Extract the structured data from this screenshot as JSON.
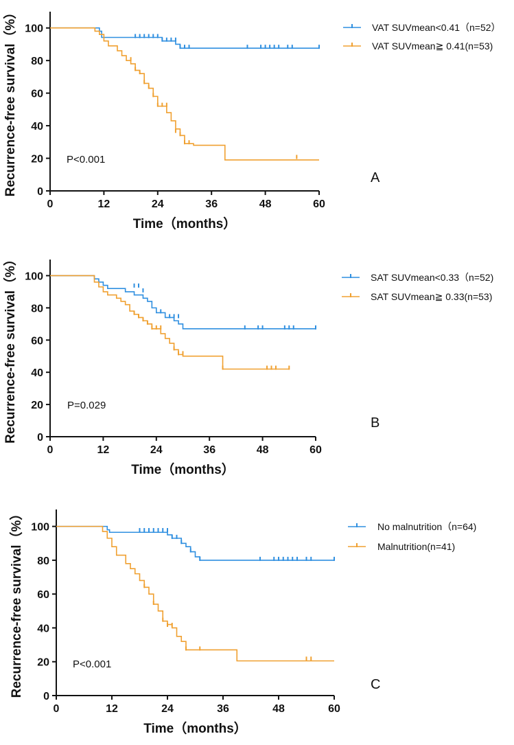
{
  "figure": {
    "colors": {
      "blue": "#2f8fe0",
      "orange": "#f0a030",
      "axis": "#111111"
    }
  },
  "chart_data": [
    {
      "type": "line",
      "subtype": "kaplan-meier",
      "panel_label": "A",
      "p_value_text": "P<0.001",
      "xlabel": "Time（months）",
      "ylabel": "Recurrence-free survival（%）",
      "xlim": [
        0,
        60
      ],
      "ylim": [
        0,
        110
      ],
      "x_ticks": [
        0,
        12,
        24,
        36,
        48,
        60
      ],
      "y_ticks": [
        0,
        20,
        40,
        60,
        80,
        100
      ],
      "legend_position": "top-right",
      "series": [
        {
          "name": "VAT SUVmean<0.41（n=52）",
          "color": "#2f8fe0",
          "steps": [
            [
              0,
              100
            ],
            [
              11,
              98
            ],
            [
              11.5,
              94.2
            ],
            [
              23,
              94.2
            ],
            [
              25,
              92
            ],
            [
              28,
              90
            ],
            [
              29,
              87.6
            ],
            [
              60,
              87.6
            ]
          ],
          "censored": [
            [
              19,
              94.2
            ],
            [
              20,
              94.2
            ],
            [
              21,
              94.2
            ],
            [
              22,
              94.2
            ],
            [
              23,
              94.2
            ],
            [
              24,
              94.2
            ],
            [
              25,
              92
            ],
            [
              26,
              92
            ],
            [
              27,
              92
            ],
            [
              28,
              92
            ],
            [
              29,
              87.6
            ],
            [
              30,
              87.6
            ],
            [
              31,
              87.6
            ],
            [
              44,
              87.6
            ],
            [
              47,
              87.6
            ],
            [
              48,
              87.6
            ],
            [
              49,
              87.6
            ],
            [
              50,
              87.6
            ],
            [
              51,
              87.6
            ],
            [
              53,
              87.6
            ],
            [
              54,
              87.6
            ],
            [
              60,
              87.6
            ]
          ]
        },
        {
          "name": "VAT SUVmean≧ 0.41(n=53)",
          "color": "#f0a030",
          "steps": [
            [
              0,
              100
            ],
            [
              10,
              98
            ],
            [
              11,
              96
            ],
            [
              12,
              92
            ],
            [
              13,
              89
            ],
            [
              15,
              86
            ],
            [
              16,
              83
            ],
            [
              17,
              80
            ],
            [
              18,
              78
            ],
            [
              19,
              74
            ],
            [
              20,
              72
            ],
            [
              21,
              66
            ],
            [
              22,
              63
            ],
            [
              23,
              58
            ],
            [
              24,
              52
            ],
            [
              26,
              48
            ],
            [
              27,
              43
            ],
            [
              28,
              38
            ],
            [
              29,
              34
            ],
            [
              30,
              29
            ],
            [
              32,
              28
            ],
            [
              39,
              19
            ],
            [
              60,
              19
            ]
          ],
          "censored": [
            [
              18,
              80
            ],
            [
              19,
              74
            ],
            [
              20,
              72
            ],
            [
              21,
              66
            ],
            [
              22,
              63
            ],
            [
              23,
              58
            ],
            [
              24,
              52
            ],
            [
              25,
              52
            ],
            [
              26,
              52
            ],
            [
              28,
              36
            ],
            [
              29,
              34
            ],
            [
              30,
              29
            ],
            [
              31,
              29
            ],
            [
              55,
              20
            ]
          ]
        }
      ]
    },
    {
      "type": "line",
      "subtype": "kaplan-meier",
      "panel_label": "B",
      "p_value_text": "P=0.029",
      "xlabel": "Time（months）",
      "ylabel": "Recurrence-free survival（%）",
      "xlim": [
        0,
        60
      ],
      "ylim": [
        0,
        110
      ],
      "x_ticks": [
        0,
        12,
        24,
        36,
        48,
        60
      ],
      "y_ticks": [
        0,
        20,
        40,
        60,
        80,
        100
      ],
      "legend_position": "top-right",
      "series": [
        {
          "name": "SAT SUVmean<0.33（n=52)",
          "color": "#2f8fe0",
          "steps": [
            [
              0,
              100
            ],
            [
              10,
              98
            ],
            [
              11,
              96
            ],
            [
              12,
              94
            ],
            [
              13,
              92
            ],
            [
              17,
              90
            ],
            [
              19,
              88
            ],
            [
              21,
              86
            ],
            [
              22,
              84
            ],
            [
              23,
              80
            ],
            [
              24,
              77
            ],
            [
              26,
              74
            ],
            [
              28,
              72
            ],
            [
              29,
              70
            ],
            [
              30,
              67
            ],
            [
              60,
              67
            ]
          ],
          "censored": [
            [
              19,
              93
            ],
            [
              20,
              93
            ],
            [
              21,
              90
            ],
            [
              25,
              77
            ],
            [
              27,
              74
            ],
            [
              28,
              74
            ],
            [
              29,
              74
            ],
            [
              44,
              67
            ],
            [
              47,
              67
            ],
            [
              48,
              67
            ],
            [
              53,
              67
            ],
            [
              54,
              67
            ],
            [
              55,
              67
            ],
            [
              60,
              67
            ]
          ]
        },
        {
          "name": "SAT SUVmean≧ 0.33(n=53)",
          "color": "#f0a030",
          "steps": [
            [
              0,
              100
            ],
            [
              10,
              96
            ],
            [
              11,
              93
            ],
            [
              12,
              90
            ],
            [
              13,
              88
            ],
            [
              15,
              86
            ],
            [
              16,
              84
            ],
            [
              17,
              82
            ],
            [
              18,
              78
            ],
            [
              19,
              76
            ],
            [
              20,
              74
            ],
            [
              21,
              72
            ],
            [
              22,
              70
            ],
            [
              23,
              67
            ],
            [
              25,
              64
            ],
            [
              26,
              61
            ],
            [
              27,
              58
            ],
            [
              28,
              54
            ],
            [
              29,
              51
            ],
            [
              30,
              50
            ],
            [
              39,
              42
            ],
            [
              54,
              42
            ]
          ],
          "censored": [
            [
              19,
              76
            ],
            [
              20,
              74
            ],
            [
              21,
              72
            ],
            [
              22,
              70
            ],
            [
              23,
              67
            ],
            [
              24,
              67
            ],
            [
              25,
              67
            ],
            [
              28,
              54
            ],
            [
              29,
              51
            ],
            [
              30,
              51
            ],
            [
              39,
              42
            ],
            [
              49,
              42
            ],
            [
              50,
              42
            ],
            [
              51,
              42
            ],
            [
              54,
              42
            ]
          ]
        }
      ]
    },
    {
      "type": "line",
      "subtype": "kaplan-meier",
      "panel_label": "C",
      "p_value_text": "P<0.001",
      "xlabel": "Time（months）",
      "ylabel": "Recurrence-free survival（%）",
      "xlim": [
        0,
        60
      ],
      "ylim": [
        0,
        110
      ],
      "x_ticks": [
        0,
        12,
        24,
        36,
        48,
        60
      ],
      "y_ticks": [
        0,
        20,
        40,
        60,
        80,
        100
      ],
      "legend_position": "top-right",
      "series": [
        {
          "name": "No malnutrition（n=64)",
          "color": "#2f8fe0",
          "steps": [
            [
              0,
              100
            ],
            [
              11,
              98
            ],
            [
              11.5,
              96.5
            ],
            [
              23,
              96.5
            ],
            [
              24,
              95
            ],
            [
              25,
              93
            ],
            [
              27,
              90
            ],
            [
              28,
              88
            ],
            [
              29,
              85
            ],
            [
              30,
              82
            ],
            [
              31,
              80
            ],
            [
              60,
              80
            ]
          ],
          "censored": [
            [
              18,
              97
            ],
            [
              19,
              97
            ],
            [
              20,
              97
            ],
            [
              21,
              97
            ],
            [
              22,
              97
            ],
            [
              23,
              97
            ],
            [
              24,
              97
            ],
            [
              25,
              93
            ],
            [
              26,
              93
            ],
            [
              27,
              90
            ],
            [
              29,
              85
            ],
            [
              31,
              80
            ],
            [
              44,
              80
            ],
            [
              47,
              80
            ],
            [
              48,
              80
            ],
            [
              49,
              80
            ],
            [
              50,
              80
            ],
            [
              51,
              80
            ],
            [
              52,
              80
            ],
            [
              54,
              80
            ],
            [
              55,
              80
            ],
            [
              60,
              80
            ]
          ]
        },
        {
          "name": "Malnutrition(n=41)",
          "color": "#f0a030",
          "steps": [
            [
              0,
              100
            ],
            [
              10,
              97
            ],
            [
              11,
              93
            ],
            [
              12,
              88
            ],
            [
              13,
              83
            ],
            [
              15,
              78
            ],
            [
              16,
              75
            ],
            [
              17,
              72
            ],
            [
              18,
              68
            ],
            [
              19,
              64
            ],
            [
              20,
              60
            ],
            [
              21,
              54
            ],
            [
              22,
              50
            ],
            [
              23,
              44
            ],
            [
              24,
              42
            ],
            [
              25,
              40
            ],
            [
              26,
              35
            ],
            [
              27,
              32
            ],
            [
              28,
              27
            ],
            [
              32,
              27
            ],
            [
              33,
              27
            ],
            [
              39,
              20.5
            ],
            [
              60,
              20.5
            ]
          ],
          "censored": [
            [
              19,
              64
            ],
            [
              21,
              54
            ],
            [
              23,
              44
            ],
            [
              24,
              41
            ],
            [
              25,
              41
            ],
            [
              28,
              27
            ],
            [
              31,
              27
            ],
            [
              54,
              21
            ],
            [
              55,
              21
            ]
          ]
        }
      ]
    }
  ]
}
